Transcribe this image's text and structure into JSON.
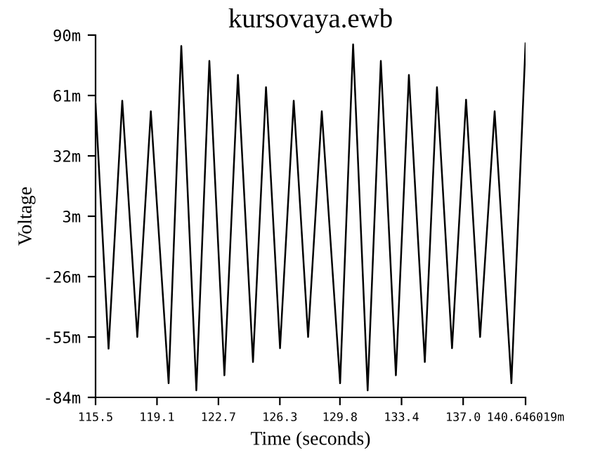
{
  "chart_data": {
    "type": "line",
    "title": "kursovaya.ewb",
    "xlabel": "Time (seconds)",
    "ylabel": "Voltage",
    "x": [
      115.52,
      116.28,
      117.08,
      117.96,
      118.75,
      119.79,
      120.53,
      121.41,
      122.17,
      123.05,
      123.84,
      124.72,
      125.48,
      126.3,
      127.1,
      127.94,
      128.74,
      129.81,
      130.57,
      131.42,
      132.19,
      133.07,
      133.83,
      134.76,
      135.47,
      136.35,
      137.17,
      137.99,
      138.84,
      139.82,
      140.646
    ],
    "series": [
      {
        "color": "#000000",
        "values": [
          57,
          -60.6,
          58.5,
          -55,
          53.4,
          -77.2,
          84.8,
          -80.6,
          77.6,
          -73.4,
          70.9,
          -67,
          65,
          -60.4,
          58.5,
          -55,
          53.4,
          -77.2,
          85.5,
          -80.6,
          77.6,
          -73.4,
          70.9,
          -67,
          65,
          -60.4,
          59,
          -55,
          53.4,
          -77.2,
          86
        ]
      }
    ],
    "xlim": [
      115.52,
      140.646019
    ],
    "xticks": [
      {
        "value": 115.52,
        "label": "115.5"
      },
      {
        "value": 119.11,
        "label": "119.1"
      },
      {
        "value": 122.7,
        "label": "122.7"
      },
      {
        "value": 126.29,
        "label": "126.3"
      },
      {
        "value": 129.8,
        "label": "129.8"
      },
      {
        "value": 133.4,
        "label": "133.4"
      },
      {
        "value": 137.0,
        "label": "137.0"
      },
      {
        "value": 140.646019,
        "label": "140.646019m"
      }
    ],
    "ylim": [
      -84,
      90
    ],
    "yticks": [
      {
        "value": 90,
        "label": "90m"
      },
      {
        "value": 61,
        "label": "61m"
      },
      {
        "value": 32,
        "label": "32m"
      },
      {
        "value": 3,
        "label": "3m"
      },
      {
        "value": -26,
        "label": "-26m"
      },
      {
        "value": -55,
        "label": "-55m"
      },
      {
        "value": -84,
        "label": "-84m"
      }
    ],
    "grid": false,
    "legend": false,
    "marker": "none",
    "line_style": "solid"
  }
}
